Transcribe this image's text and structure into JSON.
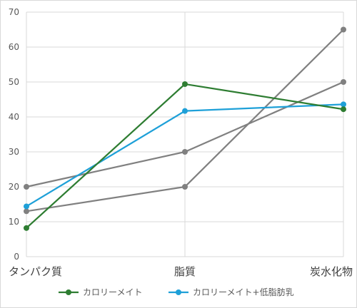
{
  "chart_data": {
    "type": "line",
    "categories": [
      "タンパク質",
      "脂質",
      "炭水化物"
    ],
    "ylim": [
      0,
      70
    ],
    "yticks": [
      0,
      10,
      20,
      30,
      40,
      50,
      60,
      70
    ],
    "grid": true,
    "legend_position": "bottom",
    "series": [
      {
        "name": "カロリーメイト",
        "color": "#2e7d32",
        "values": [
          8.2,
          49.4,
          42.2
        ],
        "in_legend": true
      },
      {
        "name": "カロリーメイト+低脂肪乳",
        "color": "#1ea0d8",
        "values": [
          14.4,
          41.7,
          43.6
        ],
        "in_legend": true
      },
      {
        "name": "",
        "color": "#808080",
        "values": [
          20,
          30,
          50
        ],
        "in_legend": false
      },
      {
        "name": "",
        "color": "#808080",
        "values": [
          13,
          20,
          65
        ],
        "in_legend": false
      }
    ]
  }
}
